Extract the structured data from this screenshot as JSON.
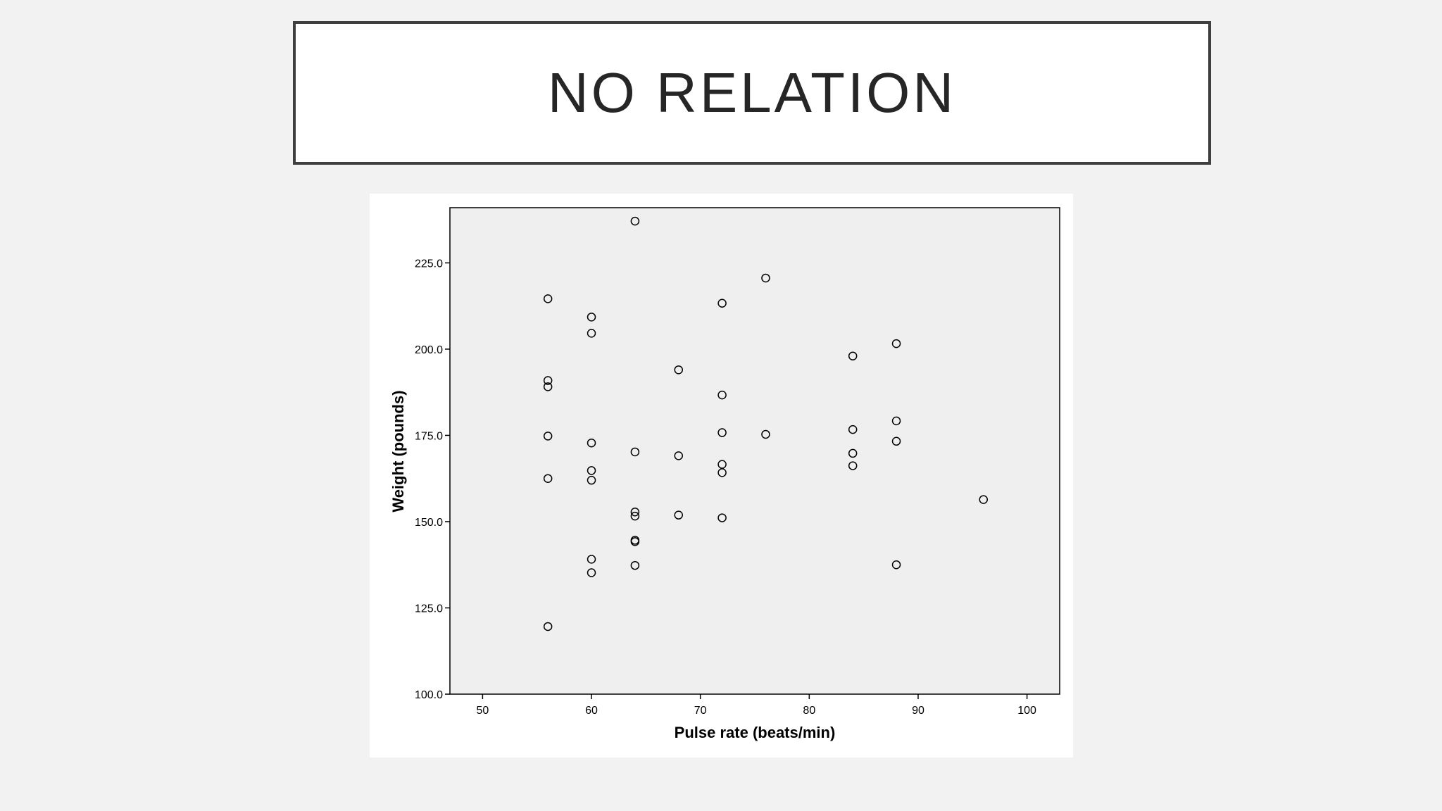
{
  "slide": {
    "title": "NO RELATION"
  },
  "colors": {
    "background": "#f2f2f2",
    "plot_background": "#efefef",
    "marker": "#000000"
  },
  "chart_data": {
    "type": "scatter",
    "title": "",
    "xlabel": "Pulse rate (beats/min)",
    "ylabel": "Weight (pounds)",
    "xlim": [
      47,
      103
    ],
    "ylim": [
      100,
      241
    ],
    "xticks": [
      50,
      60,
      70,
      80,
      90,
      100
    ],
    "yticks": [
      100,
      125,
      150,
      175,
      200,
      225
    ],
    "xtick_labels": [
      "50",
      "60",
      "70",
      "80",
      "90",
      "100"
    ],
    "ytick_labels": [
      "100.0",
      "125.0",
      "150.0",
      "175.0",
      "200.0",
      "225.0"
    ],
    "grid": false,
    "legend": false,
    "marker": "open-circle",
    "series": [
      {
        "points": [
          [
            64,
            237.1
          ],
          [
            76,
            220.6
          ],
          [
            56,
            214.6
          ],
          [
            72,
            213.3
          ],
          [
            60,
            209.3
          ],
          [
            60,
            204.6
          ],
          [
            88,
            201.6
          ],
          [
            84,
            198.0
          ],
          [
            68,
            194.0
          ],
          [
            56,
            190.9
          ],
          [
            56,
            189.1
          ],
          [
            72,
            186.7
          ],
          [
            88,
            179.2
          ],
          [
            84,
            176.7
          ],
          [
            72,
            175.8
          ],
          [
            76,
            175.3
          ],
          [
            56,
            174.8
          ],
          [
            88,
            173.3
          ],
          [
            60,
            172.8
          ],
          [
            64,
            170.2
          ],
          [
            84,
            169.8
          ],
          [
            68,
            169.1
          ],
          [
            72,
            166.6
          ],
          [
            84,
            166.2
          ],
          [
            60,
            164.8
          ],
          [
            72,
            164.2
          ],
          [
            56,
            162.5
          ],
          [
            60,
            162.0
          ],
          [
            96,
            156.4
          ],
          [
            64,
            152.8
          ],
          [
            64,
            151.6
          ],
          [
            68,
            151.9
          ],
          [
            72,
            151.1
          ],
          [
            64,
            144.6
          ],
          [
            64,
            144.2
          ],
          [
            60,
            139.1
          ],
          [
            64,
            137.3
          ],
          [
            88,
            137.5
          ],
          [
            60,
            135.2
          ],
          [
            56,
            119.6
          ]
        ]
      }
    ]
  }
}
